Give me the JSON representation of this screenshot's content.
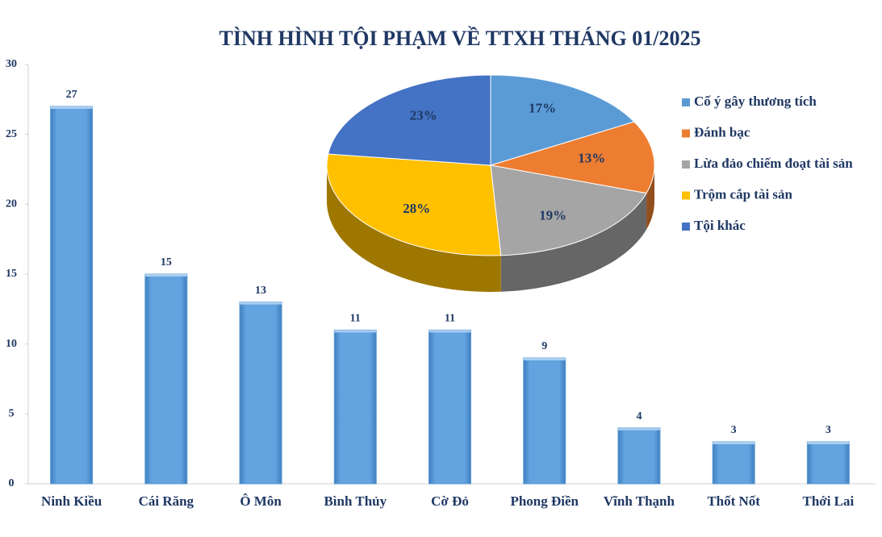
{
  "chart_data": [
    {
      "type": "bar",
      "title": "TÌNH HÌNH TỘI PHẠM VỀ TTXH THÁNG 01/2025",
      "categories": [
        "Ninh Kiều",
        "Cái Răng",
        "Ô Môn",
        "Bình Thủy",
        "Cờ Đỏ",
        "Phong Điền",
        "Vĩnh Thạnh",
        "Thốt Nốt",
        "Thới Lai"
      ],
      "values": [
        27,
        15,
        13,
        11,
        11,
        9,
        4,
        3,
        3
      ],
      "color": "#5b9bd5",
      "ylim": [
        0,
        30
      ],
      "yticks": [
        0,
        5,
        10,
        15,
        20,
        25,
        30
      ],
      "grid": false
    },
    {
      "type": "pie",
      "categories": [
        "Cố ý gây thương tích",
        "Đánh bạc",
        "Lừa đảo chiếm đoạt tài sản",
        "Trộm cắp tài sản",
        "Tội khác"
      ],
      "values": [
        17,
        13,
        19,
        28,
        23
      ],
      "value_labels": [
        "17%",
        "13%",
        "19%",
        "28%",
        "23%"
      ],
      "colors": [
        "#5b9bd5",
        "#ed7d31",
        "#a5a5a5",
        "#ffc000",
        "#4472c4"
      ],
      "legend": "right"
    }
  ]
}
